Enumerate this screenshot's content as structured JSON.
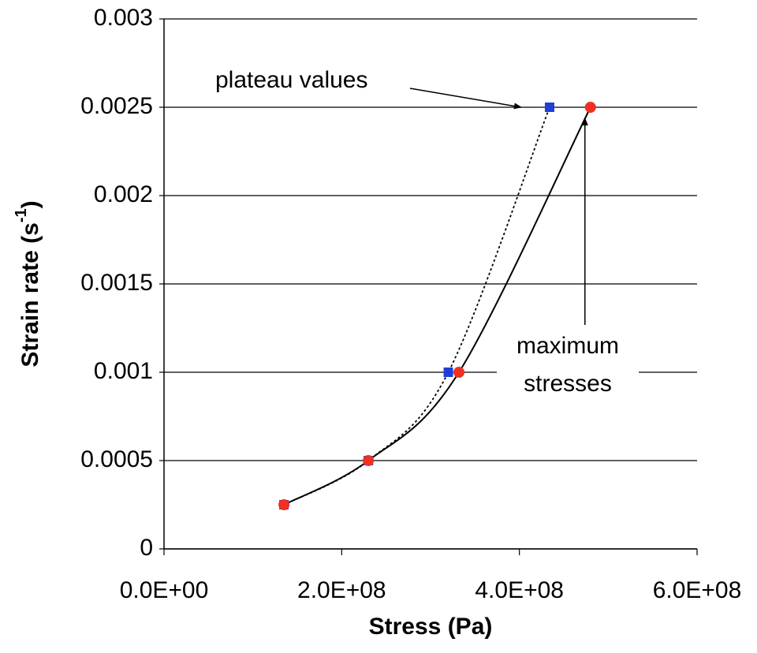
{
  "chart_data": {
    "type": "scatter",
    "x_label": "Stress (Pa)",
    "y_label": [
      "Strain rate (s",
      "-1",
      ")"
    ],
    "xlim": [
      0,
      600000000
    ],
    "xticks": [
      {
        "value": 0,
        "label": "0.0E+00"
      },
      {
        "value": 200000000,
        "label": "2.0E+08"
      },
      {
        "value": 400000000,
        "label": "4.0E+08"
      },
      {
        "value": 600000000,
        "label": "6.0E+08"
      }
    ],
    "ylim": [
      0,
      0.003
    ],
    "yticks": [
      0,
      0.0005,
      0.001,
      0.0015,
      0.002,
      0.0025,
      0.003
    ],
    "grid": true,
    "series": [
      {
        "name": "plateau values",
        "color": "#1f3fd8",
        "marker": "square",
        "line": "dotted",
        "x": [
          135000000,
          230000000,
          320000000,
          434000000
        ],
        "values": [
          0.00025,
          0.0005,
          0.001,
          0.0025
        ]
      },
      {
        "name": "maximum stresses",
        "color": "#f03020",
        "marker": "circle",
        "line": "solid",
        "x": [
          135000000,
          230000000,
          332000000,
          480000000
        ],
        "values": [
          0.00025,
          0.0005,
          0.001,
          0.0025
        ]
      }
    ],
    "annotations": [
      {
        "text": [
          "plateau values"
        ],
        "series": 0
      },
      {
        "text": [
          "maximum",
          "stresses"
        ],
        "series": 1
      }
    ]
  }
}
